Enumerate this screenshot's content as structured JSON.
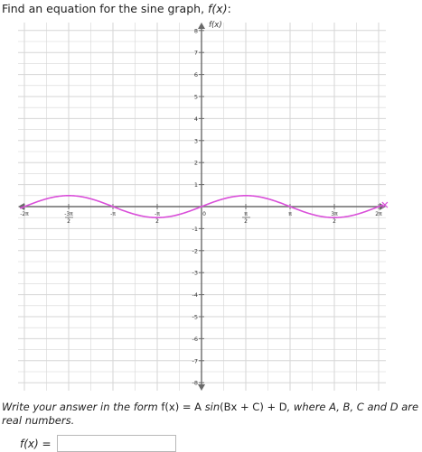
{
  "question": {
    "prompt_text": "Find an equation for the sine graph, ",
    "prompt_func": "f(x)",
    "prompt_colon": ":"
  },
  "graph": {
    "y_axis_label": "f(x)",
    "y_ticks": [
      {
        "v": 8,
        "t": "8"
      },
      {
        "v": 7,
        "t": "7"
      },
      {
        "v": 6,
        "t": "6"
      },
      {
        "v": 5,
        "t": "5"
      },
      {
        "v": 4,
        "t": "4"
      },
      {
        "v": 3,
        "t": "3"
      },
      {
        "v": 2,
        "t": "2"
      },
      {
        "v": 1,
        "t": "1"
      },
      {
        "v": -1,
        "t": "-1"
      },
      {
        "v": -2,
        "t": "-2"
      },
      {
        "v": -3,
        "t": "-3"
      },
      {
        "v": -4,
        "t": "-4"
      },
      {
        "v": -5,
        "t": "-5"
      },
      {
        "v": -6,
        "t": "-6"
      },
      {
        "v": -7,
        "t": "-7"
      },
      {
        "v": -8,
        "t": "-8"
      }
    ],
    "x_ticks": [
      {
        "v": -2,
        "num": "2π",
        "den": "",
        "neg": true
      },
      {
        "v": -1.5,
        "num": "3π",
        "den": "2",
        "neg": true
      },
      {
        "v": -1,
        "num": "π",
        "den": "",
        "neg": true
      },
      {
        "v": -0.5,
        "num": "π",
        "den": "2",
        "neg": true
      },
      {
        "v": 0,
        "num": "0",
        "den": "",
        "neg": false
      },
      {
        "v": 0.5,
        "num": "π",
        "den": "2",
        "neg": false
      },
      {
        "v": 1,
        "num": "π",
        "den": "",
        "neg": false
      },
      {
        "v": 1.5,
        "num": "3π",
        "den": "2",
        "neg": false
      },
      {
        "v": 2,
        "num": "2π",
        "den": "",
        "neg": false
      }
    ],
    "curve": {
      "amplitude": 0.5,
      "frequency": 1,
      "phase": 0,
      "vertical_shift": 0,
      "x_range_pi": [
        -2.05,
        2.05
      ],
      "color": "#d94fd9"
    },
    "axis_color": "#6a6a6a",
    "grid_color": "#d6d6d6"
  },
  "instructions": {
    "part1": "Write your answer in the form ",
    "formula_a": "f(x) = A",
    "formula_sin": "sin",
    "formula_b": "(Bx + C) + D",
    "part2": ", where A, B, C and D are real numbers."
  },
  "answer": {
    "label": "f(x) =",
    "value": "",
    "placeholder": ""
  }
}
